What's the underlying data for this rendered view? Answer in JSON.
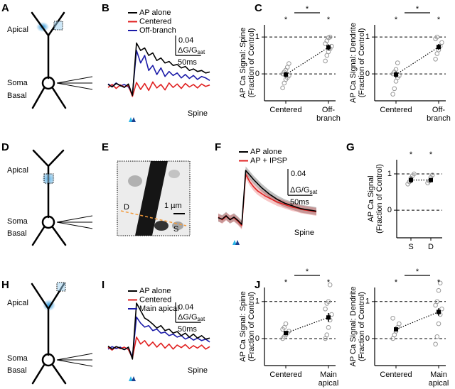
{
  "panel_labels": [
    "A",
    "B",
    "C",
    "D",
    "E",
    "F",
    "G",
    "H",
    "I",
    "J"
  ],
  "diagrams": {
    "A": {
      "labels": [
        "Apical",
        "Soma",
        "Basal"
      ]
    },
    "D": {
      "labels": [
        "Apical",
        "Soma",
        "Basal"
      ]
    },
    "E": {
      "labels": [
        "D",
        "S",
        "1 µm"
      ]
    },
    "H": {
      "labels": [
        "Apical",
        "Soma",
        "Basal"
      ]
    }
  },
  "chart_data": [
    {
      "type": "line",
      "x": [
        0,
        8,
        16,
        24,
        32,
        40,
        48,
        56,
        64,
        72,
        80,
        88,
        96,
        104,
        112,
        120,
        128,
        136,
        144,
        152,
        160,
        168,
        176,
        184,
        192,
        200
      ],
      "xlim": [
        0,
        200
      ],
      "ylim": [
        -0.035,
        0.1
      ],
      "series": [
        {
          "name": "AP alone",
          "color": "#000000",
          "values": [
            0.002,
            -0.003,
            0.004,
            0.0,
            -0.004,
            0.003,
            -0.02,
            0.085,
            0.07,
            0.075,
            0.06,
            0.065,
            0.05,
            0.055,
            0.045,
            0.048,
            0.04,
            0.042,
            0.035,
            0.038,
            0.03,
            0.033,
            0.028,
            0.03,
            0.025,
            0.027
          ]
        },
        {
          "name": "Centered",
          "color": "#e02020",
          "values": [
            -0.004,
            0.002,
            -0.006,
            0.001,
            -0.003,
            0.0,
            -0.022,
            0.006,
            -0.008,
            0.004,
            -0.01,
            0.007,
            -0.005,
            0.002,
            -0.009,
            0.005,
            -0.004,
            0.003,
            -0.006,
            0.004,
            -0.003,
            0.002,
            -0.005,
            0.003,
            -0.002,
            0.001
          ]
        },
        {
          "name": "Off-branch",
          "color": "#1a1aa8",
          "values": [
            0.003,
            -0.002,
            0.005,
            -0.001,
            0.002,
            -0.003,
            -0.018,
            0.07,
            0.045,
            0.06,
            0.03,
            0.04,
            0.022,
            0.035,
            0.018,
            0.028,
            0.02,
            0.025,
            0.015,
            0.022,
            0.014,
            0.02,
            0.012,
            0.018,
            0.015,
            0.01
          ]
        }
      ],
      "scale_bar": {
        "y": 0.04,
        "y_unit": "ΔG/G",
        "y_unit_sub": "sat",
        "x": {
          "value": 50,
          "label": "50ms"
        }
      },
      "annotation": "Spine"
    },
    {
      "type": "scatter",
      "ylabel": [
        "AP Ca Signal: Spine",
        "(Fraction of Control)"
      ],
      "categories": [
        "Centered",
        "Off-\nbranch"
      ],
      "ylim": [
        -0.73,
        1.33
      ],
      "yticks": [
        0,
        1
      ],
      "grid": true,
      "points": [
        [
          -0.38,
          -0.25,
          -0.15,
          -0.1,
          -0.05,
          0.0,
          0.05,
          0.1,
          0.18,
          0.28
        ],
        [
          0.35,
          0.5,
          0.6,
          0.68,
          0.75,
          0.82,
          0.9,
          0.98,
          1.0
        ]
      ],
      "means": [
        -0.02,
        0.72
      ],
      "errors": [
        0.07,
        0.08
      ],
      "significance": {
        "categories": [
          "*",
          "*"
        ],
        "between": "*"
      }
    },
    {
      "type": "scatter",
      "ylabel": [
        "AP Ca Signal: Dendrite",
        "(Fraction of Control)"
      ],
      "categories": [
        "Centered",
        "Off-\nbranch"
      ],
      "ylim": [
        -0.73,
        1.33
      ],
      "yticks": [
        0,
        1
      ],
      "grid": true,
      "points": [
        [
          -0.55,
          -0.4,
          -0.2,
          -0.1,
          -0.05,
          0.0,
          0.05,
          0.12,
          0.3
        ],
        [
          0.4,
          0.55,
          0.65,
          0.75,
          0.85,
          0.95,
          1.0
        ]
      ],
      "means": [
        -0.02,
        0.73
      ],
      "errors": [
        0.08,
        0.08
      ],
      "significance": {
        "categories": [
          "*",
          "*"
        ],
        "between": "*"
      }
    },
    {
      "type": "line",
      "x": [
        0,
        8,
        16,
        24,
        32,
        40,
        48,
        56,
        64,
        72,
        80,
        88,
        96,
        104,
        112,
        120,
        128,
        136,
        144,
        152,
        160,
        168,
        176,
        184,
        192,
        200
      ],
      "xlim": [
        0,
        200
      ],
      "ylim": [
        -0.025,
        0.085
      ],
      "series": [
        {
          "name": "AP alone",
          "color": "#000000",
          "error": 0.006,
          "values": [
            0.0,
            -0.002,
            0.003,
            -0.003,
            0.001,
            -0.004,
            -0.01,
            0.072,
            0.065,
            0.058,
            0.052,
            0.046,
            0.041,
            0.036,
            0.032,
            0.028,
            0.025,
            0.022,
            0.02,
            0.018,
            0.016,
            0.014,
            0.013,
            0.012,
            0.011,
            0.01
          ]
        },
        {
          "name": "AP + IPSP",
          "color": "#e02020",
          "error": 0.006,
          "values": [
            0.001,
            -0.003,
            0.002,
            -0.002,
            0.0,
            -0.005,
            -0.012,
            0.066,
            0.055,
            0.047,
            0.041,
            0.037,
            0.033,
            0.03,
            0.027,
            0.024,
            0.022,
            0.02,
            0.018,
            0.016,
            0.015,
            0.013,
            0.012,
            0.011,
            0.01,
            0.009
          ]
        }
      ],
      "scale_bar": {
        "y": 0.04,
        "y_unit": "ΔG/G",
        "y_unit_sub": "sat",
        "x": {
          "value": 50,
          "label": "50ms"
        }
      },
      "annotation": "Spine"
    },
    {
      "type": "scatter",
      "ylabel": [
        "AP Ca Signal",
        "(Fraction of Control)"
      ],
      "categories": [
        "S",
        "D"
      ],
      "ylim": [
        -0.76,
        1.39
      ],
      "yticks": [
        0,
        1
      ],
      "grid": true,
      "points": [
        [
          0.72,
          0.78,
          0.88,
          0.95,
          1.0
        ],
        [
          0.75,
          0.8,
          0.9,
          0.97
        ]
      ],
      "means": [
        0.83,
        0.83
      ],
      "errors": [
        0.08,
        0.06
      ],
      "significance": {
        "categories": [
          "*",
          "*"
        ]
      }
    },
    {
      "type": "line",
      "x": [
        0,
        8,
        16,
        24,
        32,
        40,
        48,
        56,
        64,
        72,
        80,
        88,
        96,
        104,
        112,
        120,
        128,
        136,
        144,
        152,
        160,
        168,
        176,
        184,
        192,
        200
      ],
      "xlim": [
        0,
        200
      ],
      "ylim": [
        -0.035,
        0.1
      ],
      "series": [
        {
          "name": "AP alone",
          "color": "#000000",
          "values": [
            0.004,
            -0.002,
            0.003,
            0.0,
            -0.003,
            0.002,
            -0.022,
            0.09,
            0.075,
            0.06,
            0.055,
            0.048,
            0.04,
            0.045,
            0.035,
            0.038,
            0.03,
            0.033,
            0.025,
            0.03,
            0.022,
            0.028,
            0.02,
            0.025,
            0.018,
            0.02
          ]
        },
        {
          "name": "Centered",
          "color": "#e02020",
          "values": [
            0.002,
            -0.004,
            0.003,
            -0.001,
            0.002,
            -0.003,
            -0.02,
            0.022,
            0.008,
            0.015,
            0.004,
            0.012,
            0.002,
            0.01,
            0.0,
            0.008,
            -0.002,
            0.006,
            0.001,
            0.007,
            -0.001,
            0.005,
            0.0,
            0.006,
            -0.002,
            0.003
          ]
        },
        {
          "name": "Main apical",
          "color": "#1a1aa8",
          "values": [
            -0.002,
            0.003,
            -0.001,
            0.002,
            -0.003,
            0.001,
            -0.018,
            0.062,
            0.05,
            0.042,
            0.045,
            0.035,
            0.038,
            0.03,
            0.032,
            0.025,
            0.028,
            0.022,
            0.025,
            0.018,
            0.022,
            0.016,
            0.02,
            0.015,
            0.018,
            0.012
          ]
        }
      ],
      "scale_bar": {
        "y": 0.04,
        "y_unit": "ΔG/G",
        "y_unit_sub": "sat",
        "x": {
          "value": 50,
          "label": "50ms"
        }
      },
      "annotation": "Spine"
    },
    {
      "type": "scatter",
      "ylabel": [
        "AP Ca Signal: Spine",
        "(Fraction of Control)"
      ],
      "categories": [
        "Centered",
        "Main\napical"
      ],
      "ylim": [
        -0.73,
        1.38
      ],
      "yticks": [
        0,
        1
      ],
      "grid": true,
      "points": [
        [
          0.0,
          0.05,
          0.1,
          0.15,
          0.2,
          0.25,
          0.3,
          0.4
        ],
        [
          0.0,
          0.1,
          0.3,
          0.5,
          0.65,
          0.8,
          0.95,
          1.0,
          1.45
        ]
      ],
      "means": [
        0.15,
        0.57
      ],
      "errors": [
        0.05,
        0.12
      ],
      "significance": {
        "categories": [
          "*",
          "*"
        ],
        "between": "*"
      }
    },
    {
      "type": "scatter",
      "ylabel": [
        "AP Ca Signal: Dendrite",
        "(Fraction of Control)"
      ],
      "categories": [
        "Centered",
        "Main\napical"
      ],
      "ylim": [
        -0.73,
        1.38
      ],
      "yticks": [
        0,
        1
      ],
      "grid": true,
      "points": [
        [
          0.0,
          0.1,
          0.2,
          0.3,
          0.4,
          0.55
        ],
        [
          -0.15,
          0.05,
          0.4,
          0.65,
          0.8,
          0.9,
          1.0,
          1.3,
          1.5
        ]
      ],
      "means": [
        0.25,
        0.72
      ],
      "errors": [
        0.06,
        0.1
      ],
      "significance": {
        "categories": [
          "*",
          "*"
        ],
        "between": "*"
      }
    }
  ]
}
